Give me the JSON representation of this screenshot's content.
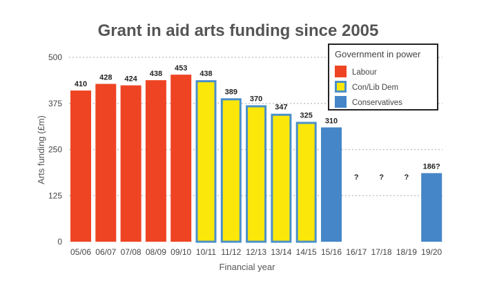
{
  "chart_data": {
    "type": "bar",
    "title": "Grant in aid arts funding since 2005",
    "xlabel": "Financial year",
    "ylabel": "Arts funding (£m)",
    "ylim": [
      0,
      500
    ],
    "yticks": [
      "0",
      "125",
      "250",
      "375",
      "500"
    ],
    "ytick_values": [
      0,
      125,
      250,
      375,
      500
    ],
    "grid": true,
    "legend_position": "top-right",
    "legend_title": "Government in power",
    "legend": [
      {
        "name": "Labour",
        "color": "#ef4423",
        "border": "#ef4423"
      },
      {
        "name": "Con/Lib Dem",
        "color": "#fce70a",
        "border": "#4a8fc9"
      },
      {
        "name": "Conservatives",
        "color": "#4486c7",
        "border": "#4486c7"
      }
    ],
    "categories": [
      "05/06",
      "06/07",
      "07/08",
      "08/09",
      "09/10",
      "10/11",
      "11/12",
      "12/13",
      "13/14",
      "14/15",
      "15/16",
      "16/17",
      "17/18",
      "18/19",
      "19/20"
    ],
    "values": [
      410,
      428,
      424,
      438,
      453,
      438,
      389,
      370,
      347,
      325,
      310,
      null,
      null,
      null,
      186
    ],
    "labels": [
      "410",
      "428",
      "424",
      "438",
      "453",
      "438",
      "389",
      "370",
      "347",
      "325",
      "310",
      "?",
      "?",
      "?",
      "186?"
    ],
    "government": [
      "Labour",
      "Labour",
      "Labour",
      "Labour",
      "Labour",
      "Con/Lib Dem",
      "Con/Lib Dem",
      "Con/Lib Dem",
      "Con/Lib Dem",
      "Con/Lib Dem",
      "Conservatives",
      "",
      "",
      "",
      "Conservatives"
    ]
  }
}
